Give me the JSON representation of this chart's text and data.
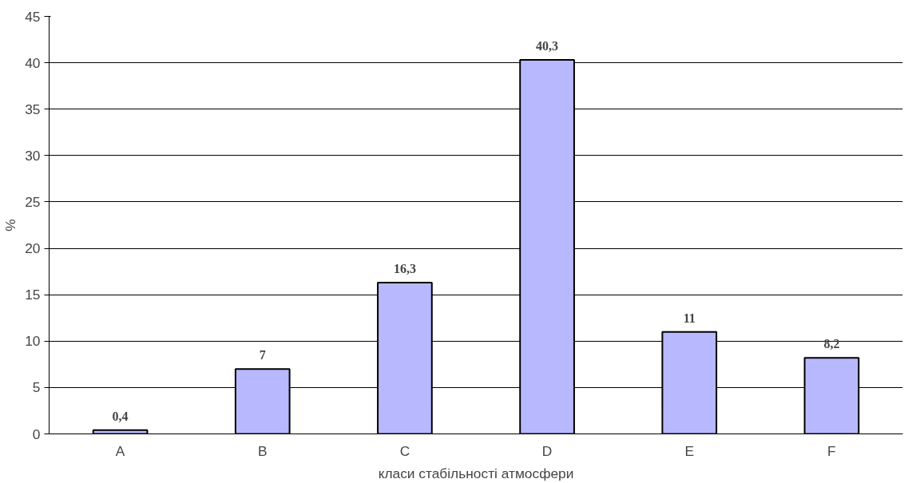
{
  "chart_data": {
    "type": "bar",
    "xlabel": "класи стабільності атмосфери",
    "ylabel": "%",
    "categories": [
      "A",
      "B",
      "C",
      "D",
      "E",
      "F"
    ],
    "values": [
      0.4,
      7,
      16.3,
      40.3,
      11,
      8.2
    ],
    "value_labels": [
      "0,4",
      "7",
      "16,3",
      "40,3",
      "11",
      "8,2"
    ],
    "color": "#b8b8ff",
    "ylim": [
      0,
      45
    ],
    "yticks": [
      0,
      5,
      10,
      15,
      20,
      25,
      30,
      35,
      40,
      45
    ],
    "grid": "y"
  }
}
